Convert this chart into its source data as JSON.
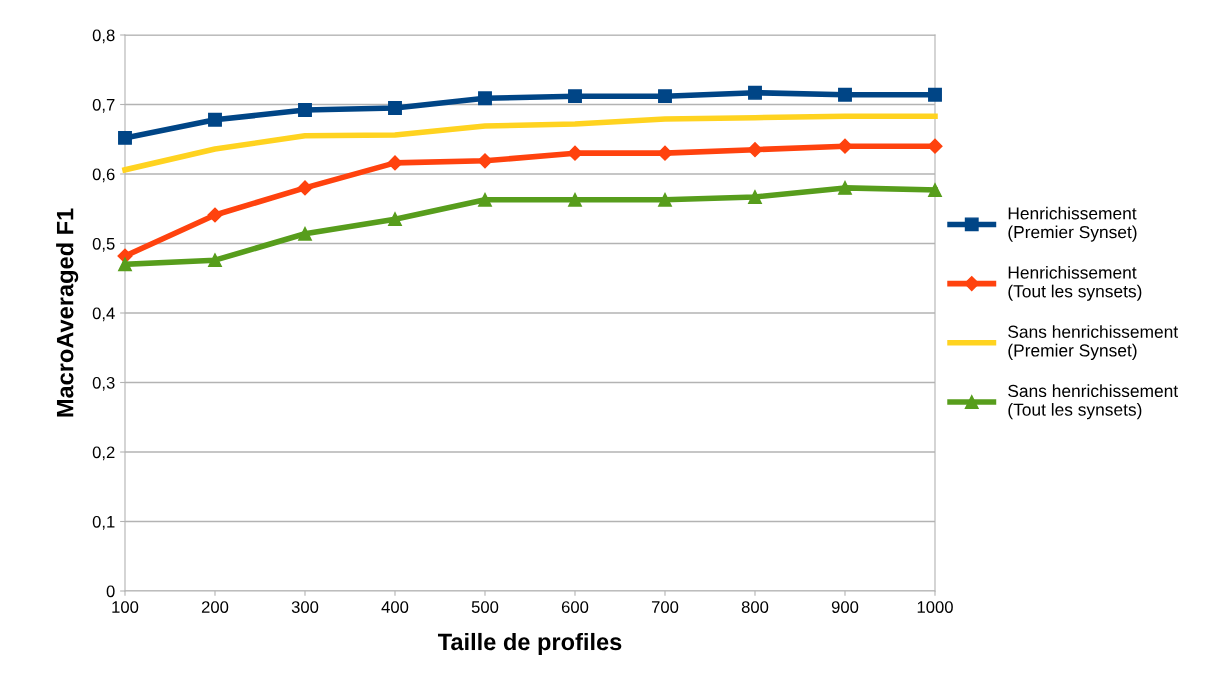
{
  "chart_data": {
    "type": "line",
    "xlabel": "Taille de profiles",
    "ylabel": "MacroAveraged F1",
    "x": [
      100,
      200,
      300,
      400,
      500,
      600,
      700,
      800,
      900,
      1000
    ],
    "xlim": [
      100,
      1000
    ],
    "xticks": [
      100,
      200,
      300,
      400,
      500,
      600,
      700,
      800,
      900,
      1000
    ],
    "ylim": [
      0,
      0.8
    ],
    "yticks": [
      {
        "value": 0,
        "label": "0"
      },
      {
        "value": 0.1,
        "label": "0,1"
      },
      {
        "value": 0.2,
        "label": "0,2"
      },
      {
        "value": 0.3,
        "label": "0,3"
      },
      {
        "value": 0.4,
        "label": "0,4"
      },
      {
        "value": 0.5,
        "label": "0,5"
      },
      {
        "value": 0.6,
        "label": "0,6"
      },
      {
        "value": 0.7,
        "label": "0,7"
      },
      {
        "value": 0.8,
        "label": "0,8"
      }
    ],
    "grid": "y",
    "legend": "right",
    "line_style": "solid",
    "series": [
      {
        "name": "Henrichissement\n(Premier Synset)",
        "color": "#004586",
        "marker": "square",
        "values": [
          0.652,
          0.678,
          0.692,
          0.695,
          0.709,
          0.712,
          0.712,
          0.717,
          0.714,
          0.714
        ]
      },
      {
        "name": "Henrichissement\n(Tout les synsets)",
        "color": "#ff420e",
        "marker": "diamond",
        "values": [
          0.482,
          0.541,
          0.58,
          0.616,
          0.619,
          0.63,
          0.63,
          0.635,
          0.64,
          0.64
        ]
      },
      {
        "name": "Sans henrichissement\n(Premier Synset)",
        "color": "#ffd320",
        "marker": "none",
        "values": [
          0.606,
          0.636,
          0.655,
          0.656,
          0.669,
          0.672,
          0.679,
          0.681,
          0.683,
          0.683
        ]
      },
      {
        "name": "Sans henrichissement\n(Tout les synsets)",
        "color": "#579d1c",
        "marker": "triangle",
        "values": [
          0.47,
          0.476,
          0.514,
          0.535,
          0.563,
          0.563,
          0.563,
          0.567,
          0.58,
          0.577
        ]
      }
    ]
  }
}
